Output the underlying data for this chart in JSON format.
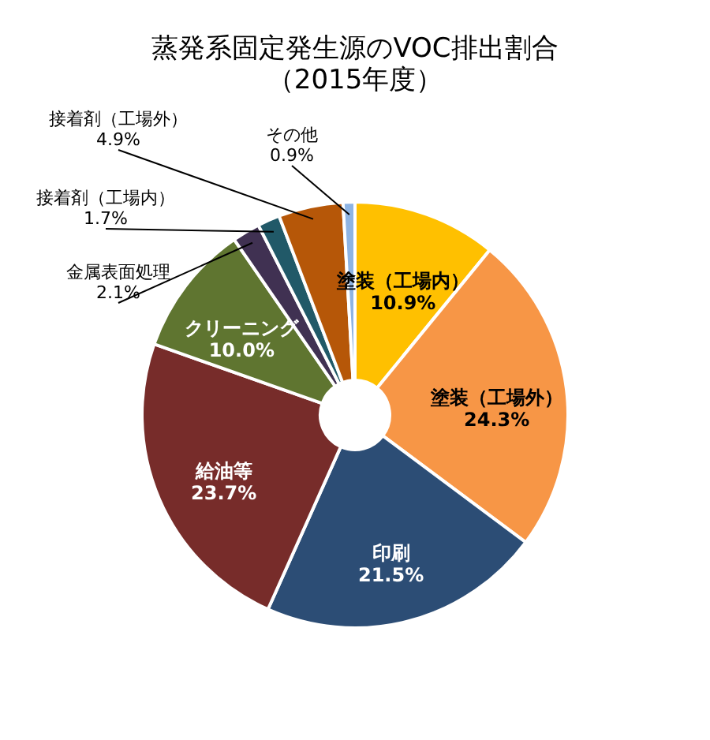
{
  "chart_data": {
    "type": "donut",
    "title": "蒸発系固定発生源のVOC排出割合",
    "subtitle": "（2015年度）",
    "categories": [
      "塗装（工場内）",
      "塗装（工場外）",
      "印刷",
      "給油等",
      "クリーニング",
      "金属表面処理",
      "接着剤（工場内）",
      "接着剤（工場外）",
      "その他"
    ],
    "values": [
      10.9,
      24.3,
      21.5,
      23.7,
      10.0,
      2.1,
      1.7,
      4.9,
      0.9
    ],
    "value_labels": [
      "10.9%",
      "24.3%",
      "21.5%",
      "23.7%",
      "10.0%",
      "2.1%",
      "1.7%",
      "4.9%",
      "0.9%"
    ],
    "colors": [
      "#ffc000",
      "#f79646",
      "#2c4d75",
      "#772c2a",
      "#5f7530",
      "#403152",
      "#215968",
      "#b65708",
      "#8eb4e3"
    ],
    "legend": false
  }
}
